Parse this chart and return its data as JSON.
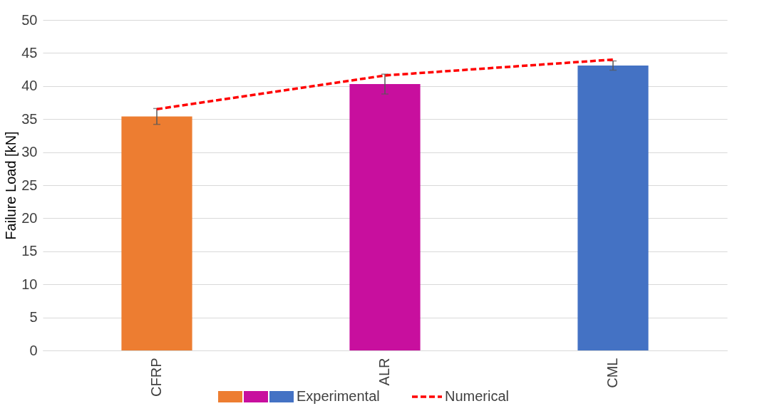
{
  "chart_data": {
    "type": "bar",
    "ylabel": "Failure Load [kN]",
    "categories": [
      "CFRP",
      "ALR",
      "CML"
    ],
    "series": [
      {
        "name": "Experimental",
        "colors": [
          "#ed7d31",
          "#c80f9e",
          "#4472c4"
        ],
        "values": [
          35.4,
          40.3,
          43.1
        ],
        "errors": [
          1.2,
          1.5,
          0.7
        ]
      },
      {
        "name": "Numerical",
        "type": "line",
        "color": "#ff0000",
        "line_style": "dashed",
        "values": [
          36.5,
          41.6,
          44.0
        ]
      }
    ],
    "ylim": [
      0,
      50
    ],
    "yticks": [
      0,
      5,
      10,
      15,
      20,
      25,
      30,
      35,
      40,
      45,
      50
    ],
    "grid": "y",
    "legend": "bottom",
    "marker": "none"
  }
}
